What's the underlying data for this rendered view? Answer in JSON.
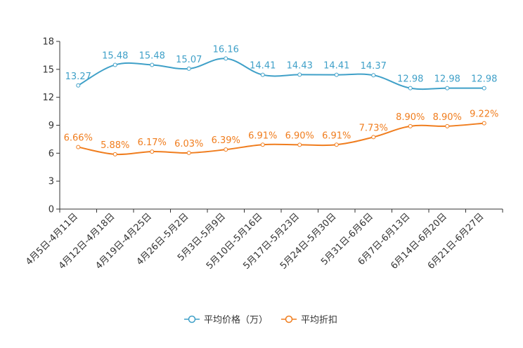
{
  "chart_data": {
    "type": "line",
    "title": "",
    "xlabel": "",
    "ylabel": "",
    "ylim": [
      0,
      18
    ],
    "yticks": [
      0,
      3,
      6,
      9,
      12,
      15,
      18
    ],
    "categories": [
      "4月5日-4月11日",
      "4月12日-4月18日",
      "4月19日-4月25日",
      "4月26日-5月2日",
      "5月3日-5月9日",
      "5月10日-5月16日",
      "5月17日-5月23日",
      "5月24日-5月30日",
      "5月31日-6月6日",
      "6月7日-6月13日",
      "6月14日-6月20日",
      "6月21日-6月27日"
    ],
    "series": [
      {
        "name": "平均价格（万）",
        "color": "#3fa0c8",
        "values": [
          13.27,
          15.48,
          15.48,
          15.07,
          16.16,
          14.41,
          14.43,
          14.41,
          14.37,
          12.98,
          12.98,
          12.98
        ],
        "labels": [
          "13.27",
          "15.48",
          "15.48",
          "15.07",
          "16.16",
          "14.41",
          "14.43",
          "14.41",
          "14.37",
          "12.98",
          "12.98",
          "12.98"
        ]
      },
      {
        "name": "平均折扣",
        "color": "#f07d1e",
        "values": [
          6.66,
          5.88,
          6.17,
          6.03,
          6.39,
          6.91,
          6.9,
          6.91,
          7.73,
          8.9,
          8.9,
          9.22
        ],
        "labels": [
          "6.66%",
          "5.88%",
          "6.17%",
          "6.03%",
          "6.39%",
          "6.91%",
          "6.90%",
          "6.91%",
          "7.73%",
          "8.90%",
          "8.90%",
          "9.22%"
        ]
      }
    ],
    "legend": "bottom-center",
    "grid": false
  }
}
